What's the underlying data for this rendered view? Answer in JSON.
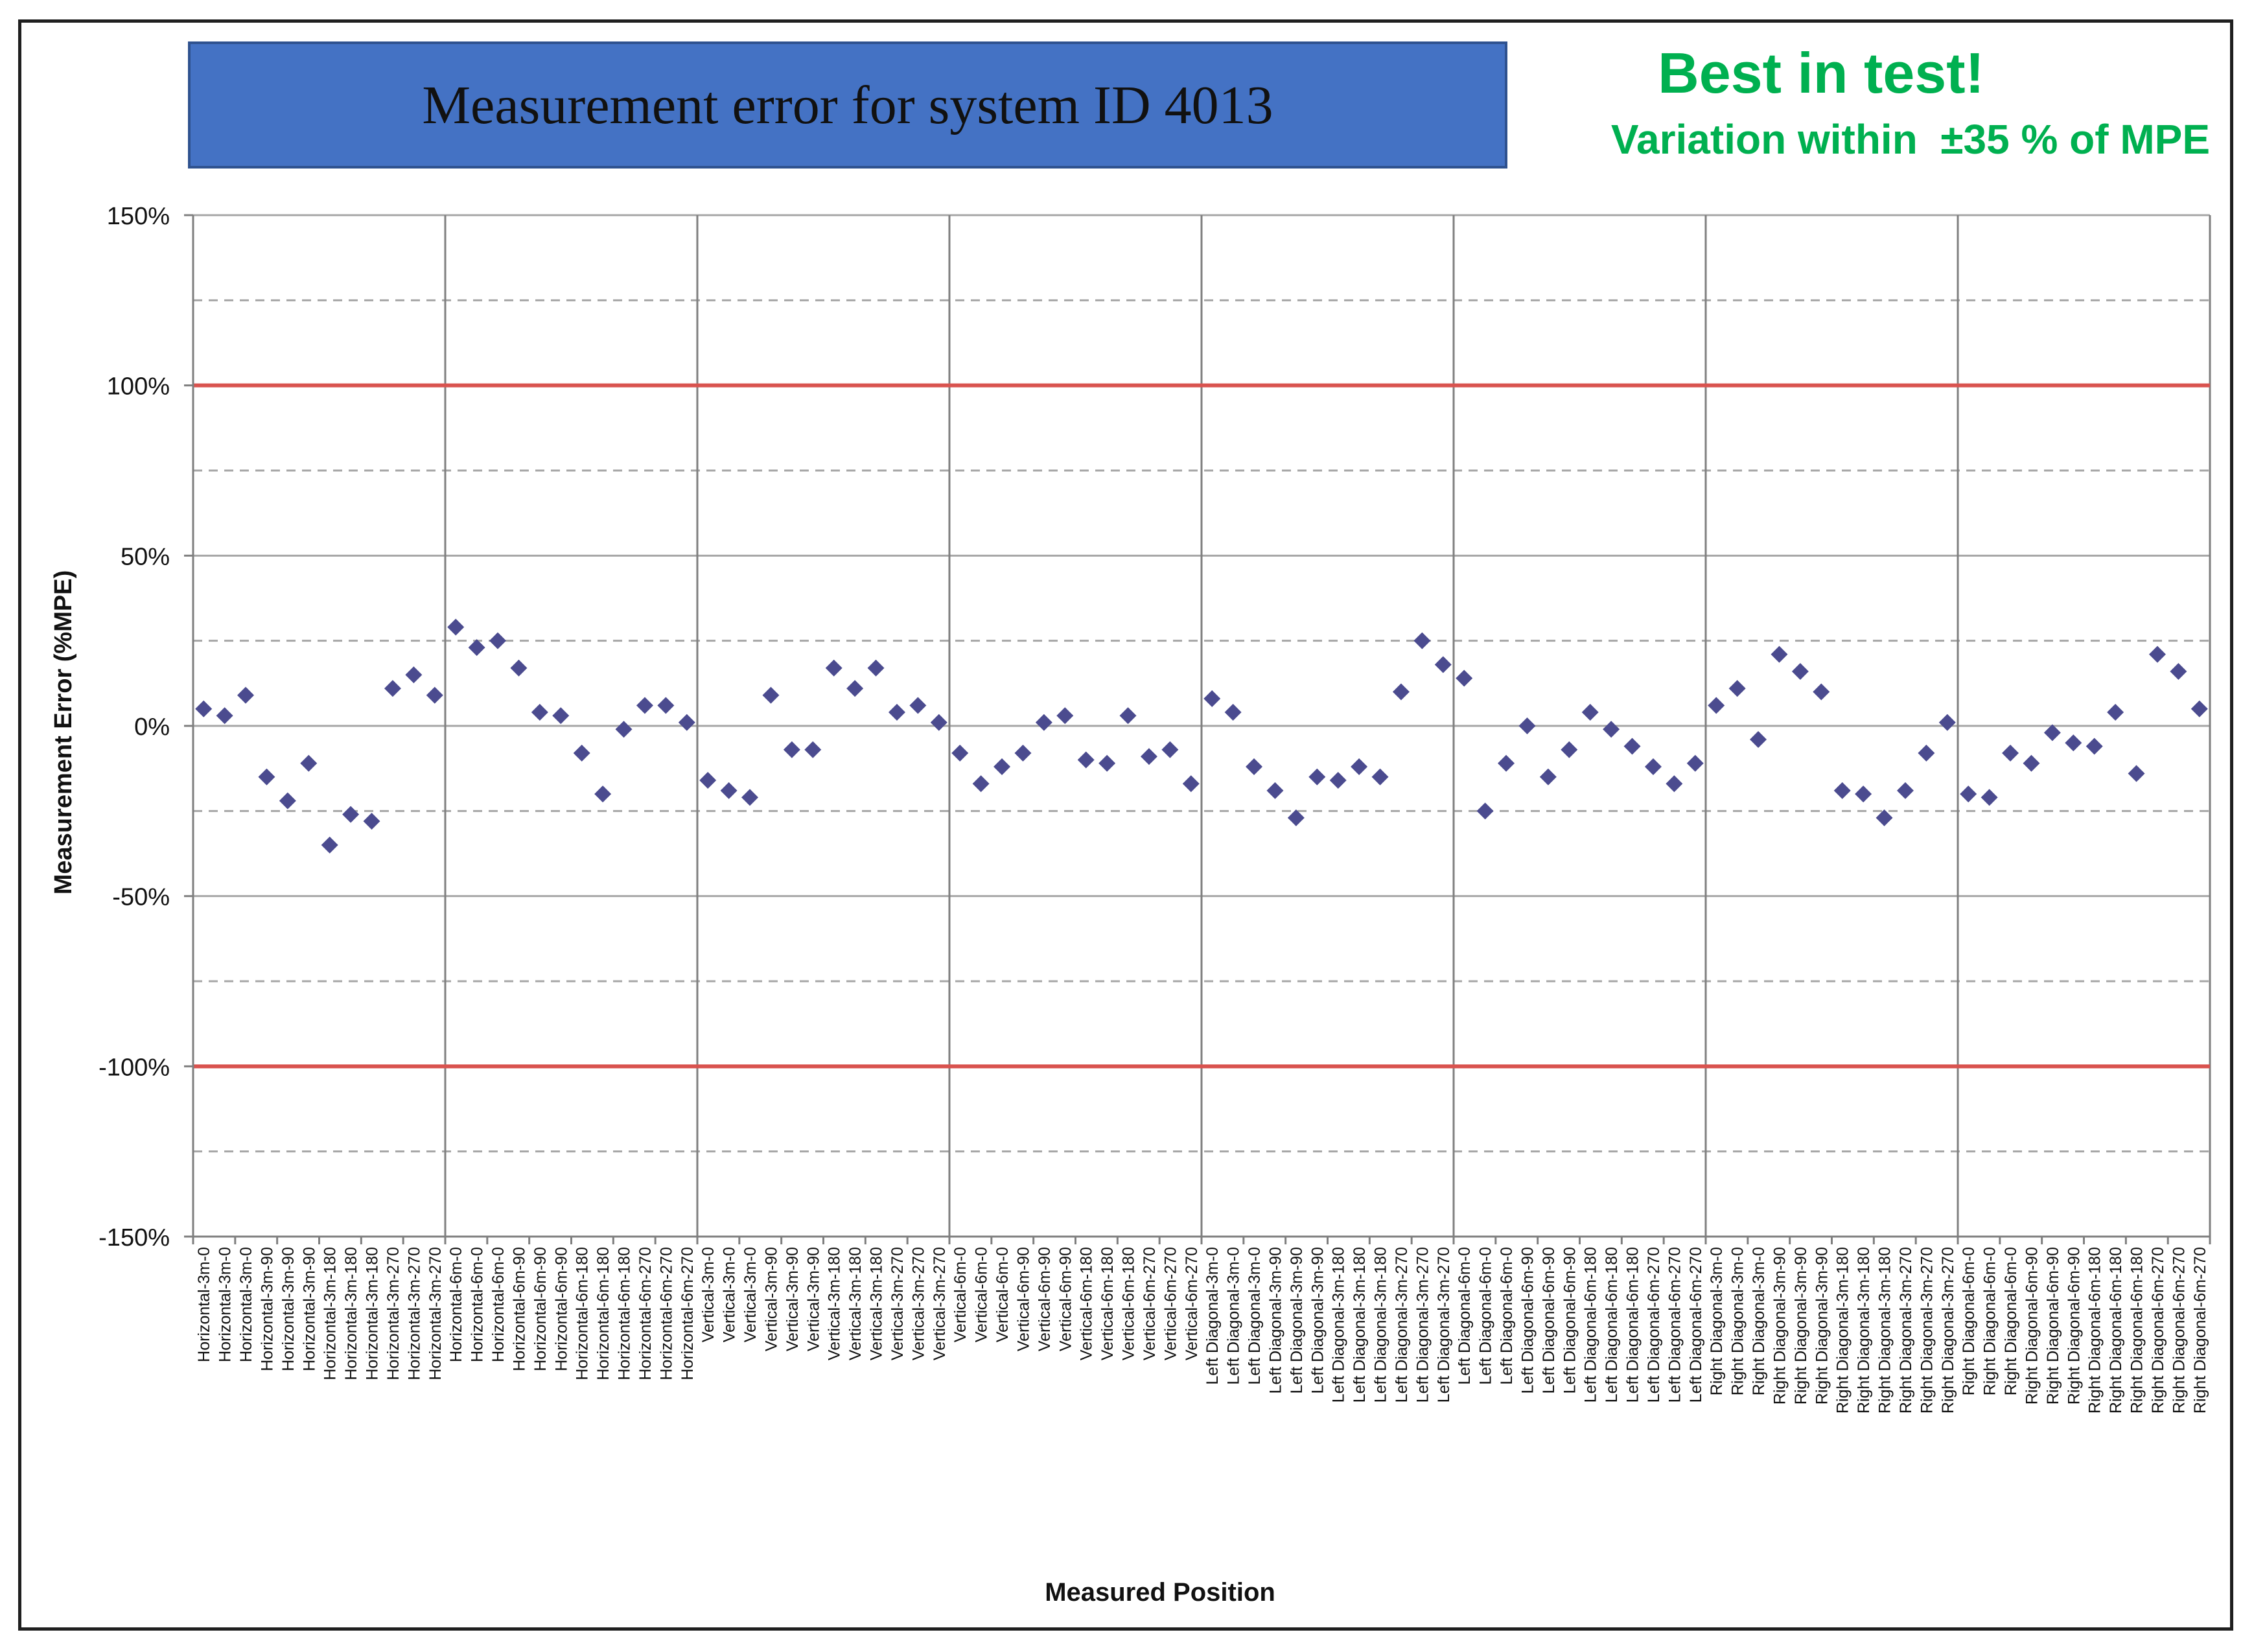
{
  "header": {
    "title": "Measurement error for system ID 4013",
    "note_line1": "Best in test!",
    "note_line2": "Variation within  ±35 % of MPE"
  },
  "colors": {
    "title_fill": "#4472c4",
    "note_text": "#00b050",
    "marker": "#4b4b8f",
    "limit_line": "#d9534f",
    "grid": "#a6a6a6"
  },
  "chart_data": {
    "type": "scatter",
    "marker": "diamond",
    "ylabel": "Measurement Error (%MPE)",
    "xlabel": "Measured Position",
    "ylim": [
      -150,
      150
    ],
    "yticks": [
      150,
      100,
      50,
      0,
      -50,
      -100,
      -150
    ],
    "ytick_labels": [
      "150%",
      "100%",
      "50%",
      "0%",
      "-50%",
      "-100%",
      "-150%"
    ],
    "minor_grid": [
      125,
      75,
      25,
      -25,
      -75,
      -125
    ],
    "limit_lines": [
      100,
      -100
    ],
    "group_size": 12,
    "categories": [
      "Horizontal-3m-0",
      "Horizontal-3m-0",
      "Horizontal-3m-0",
      "Horizontal-3m-90",
      "Horizontal-3m-90",
      "Horizontal-3m-90",
      "Horizontal-3m-180",
      "Horizontal-3m-180",
      "Horizontal-3m-180",
      "Horizontal-3m-270",
      "Horizontal-3m-270",
      "Horizontal-3m-270",
      "Horizontal-6m-0",
      "Horizontal-6m-0",
      "Horizontal-6m-0",
      "Horizontal-6m-90",
      "Horizontal-6m-90",
      "Horizontal-6m-90",
      "Horizontal-6m-180",
      "Horizontal-6m-180",
      "Horizontal-6m-180",
      "Horizontal-6m-270",
      "Horizontal-6m-270",
      "Horizontal-6m-270",
      "Vertical-3m-0",
      "Vertical-3m-0",
      "Vertical-3m-0",
      "Vertical-3m-90",
      "Vertical-3m-90",
      "Vertical-3m-90",
      "Vertical-3m-180",
      "Vertical-3m-180",
      "Vertical-3m-180",
      "Vertical-3m-270",
      "Vertical-3m-270",
      "Vertical-3m-270",
      "Vertical-6m-0",
      "Vertical-6m-0",
      "Vertical-6m-0",
      "Vertical-6m-90",
      "Vertical-6m-90",
      "Vertical-6m-90",
      "Vertical-6m-180",
      "Vertical-6m-180",
      "Vertical-6m-180",
      "Vertical-6m-270",
      "Vertical-6m-270",
      "Vertical-6m-270",
      "Left Diagonal-3m-0",
      "Left Diagonal-3m-0",
      "Left Diagonal-3m-0",
      "Left Diagonal-3m-90",
      "Left Diagonal-3m-90",
      "Left Diagonal-3m-90",
      "Left Diagonal-3m-180",
      "Left Diagonal-3m-180",
      "Left Diagonal-3m-180",
      "Left Diagonal-3m-270",
      "Left Diagonal-3m-270",
      "Left Diagonal-3m-270",
      "Left Diagonal-6m-0",
      "Left Diagonal-6m-0",
      "Left Diagonal-6m-0",
      "Left Diagonal-6m-90",
      "Left Diagonal-6m-90",
      "Left Diagonal-6m-90",
      "Left Diagonal-6m-180",
      "Left Diagonal-6m-180",
      "Left Diagonal-6m-180",
      "Left Diagonal-6m-270",
      "Left Diagonal-6m-270",
      "Left Diagonal-6m-270",
      "Right Diagonal-3m-0",
      "Right Diagonal-3m-0",
      "Right Diagonal-3m-0",
      "Right Diagonal-3m-90",
      "Right Diagonal-3m-90",
      "Right Diagonal-3m-90",
      "Right Diagonal-3m-180",
      "Right Diagonal-3m-180",
      "Right Diagonal-3m-180",
      "Right Diagonal-3m-270",
      "Right Diagonal-3m-270",
      "Right Diagonal-3m-270",
      "Right Diagonal-6m-0",
      "Right Diagonal-6m-0",
      "Right Diagonal-6m-0",
      "Right Diagonal-6m-90",
      "Right Diagonal-6m-90",
      "Right Diagonal-6m-90",
      "Right Diagonal-6m-180",
      "Right Diagonal-6m-180",
      "Right Diagonal-6m-180",
      "Right Diagonal-6m-270",
      "Right Diagonal-6m-270",
      "Right Diagonal-6m-270"
    ],
    "values": [
      5,
      3,
      9,
      -15,
      -22,
      -11,
      -35,
      -26,
      -28,
      11,
      15,
      9,
      29,
      23,
      25,
      17,
      4,
      3,
      -8,
      -20,
      -1,
      6,
      6,
      1,
      -16,
      -19,
      -21,
      9,
      -7,
      -7,
      17,
      11,
      17,
      4,
      6,
      1,
      -8,
      -17,
      -12,
      -8,
      1,
      3,
      -10,
      -11,
      3,
      -9,
      -7,
      -17,
      8,
      4,
      -12,
      -19,
      -27,
      -15,
      -16,
      -12,
      -15,
      10,
      25,
      18,
      14,
      -25,
      -11,
      0,
      -15,
      -7,
      4,
      -1,
      -6,
      -12,
      -17,
      -11,
      6,
      11,
      -4,
      21,
      16,
      10,
      -19,
      -20,
      -27,
      -19,
      -8,
      1,
      -20,
      -21,
      -8,
      -11,
      -2,
      -5,
      -6,
      4,
      -14,
      21,
      16,
      5
    ]
  }
}
